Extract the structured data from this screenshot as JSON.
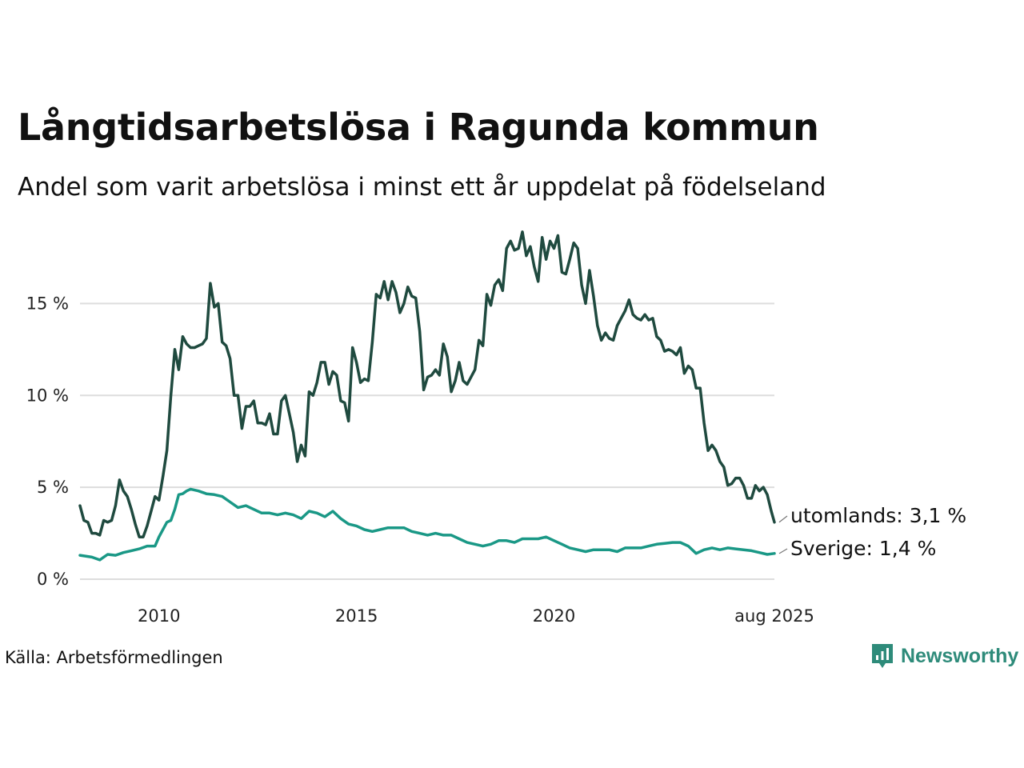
{
  "header": {
    "title": "Långtidsarbetslösa i Ragunda kommun",
    "subtitle": "Andel som varit arbetslösa i minst ett år uppdelat på födelseland"
  },
  "footer": {
    "source": "Källa: Arbetsförmedlingen",
    "brand": "Newsworthy"
  },
  "colors": {
    "utomlands": "#1f4a3f",
    "sverige": "#1a9886",
    "grid": "#dddddd",
    "brand": "#2e8b7a"
  },
  "chart_data": {
    "type": "line",
    "x_unit": "year",
    "xlim": [
      2008.0,
      2025.58
    ],
    "ylim": [
      0,
      19.5
    ],
    "grid": "horizontal",
    "y_ticks": [
      {
        "value": 0,
        "label": "0 %"
      },
      {
        "value": 5,
        "label": "5 %"
      },
      {
        "value": 10,
        "label": "10 %"
      },
      {
        "value": 15,
        "label": "15 %"
      }
    ],
    "x_ticks": [
      {
        "value": 2010,
        "label": "2010"
      },
      {
        "value": 2015,
        "label": "2015"
      },
      {
        "value": 2020,
        "label": "2020"
      },
      {
        "value": 2025.58,
        "label": "aug 2025"
      }
    ],
    "series": [
      {
        "name": "utomlands",
        "end_label": "utomlands: 3,1 %",
        "color_key": "utomlands",
        "points": [
          [
            2008.0,
            4.0
          ],
          [
            2008.1,
            3.2
          ],
          [
            2008.2,
            3.1
          ],
          [
            2008.3,
            2.5
          ],
          [
            2008.4,
            2.5
          ],
          [
            2008.5,
            2.4
          ],
          [
            2008.6,
            3.2
          ],
          [
            2008.7,
            3.1
          ],
          [
            2008.8,
            3.2
          ],
          [
            2008.9,
            4.0
          ],
          [
            2009.0,
            5.4
          ],
          [
            2009.1,
            4.8
          ],
          [
            2009.2,
            4.5
          ],
          [
            2009.3,
            3.8
          ],
          [
            2009.4,
            3.0
          ],
          [
            2009.5,
            2.3
          ],
          [
            2009.6,
            2.3
          ],
          [
            2009.7,
            2.9
          ],
          [
            2009.8,
            3.7
          ],
          [
            2009.9,
            4.5
          ],
          [
            2010.0,
            4.3
          ],
          [
            2010.1,
            5.6
          ],
          [
            2010.2,
            7.0
          ],
          [
            2010.3,
            10.0
          ],
          [
            2010.4,
            12.5
          ],
          [
            2010.5,
            11.4
          ],
          [
            2010.6,
            13.2
          ],
          [
            2010.7,
            12.8
          ],
          [
            2010.8,
            12.6
          ],
          [
            2010.9,
            12.6
          ],
          [
            2011.0,
            12.7
          ],
          [
            2011.1,
            12.8
          ],
          [
            2011.2,
            13.1
          ],
          [
            2011.3,
            16.1
          ],
          [
            2011.4,
            14.8
          ],
          [
            2011.5,
            15.0
          ],
          [
            2011.6,
            12.9
          ],
          [
            2011.7,
            12.7
          ],
          [
            2011.8,
            12.0
          ],
          [
            2011.9,
            10.0
          ],
          [
            2012.0,
            10.0
          ],
          [
            2012.1,
            8.2
          ],
          [
            2012.2,
            9.4
          ],
          [
            2012.3,
            9.4
          ],
          [
            2012.4,
            9.7
          ],
          [
            2012.5,
            8.5
          ],
          [
            2012.6,
            8.5
          ],
          [
            2012.7,
            8.4
          ],
          [
            2012.8,
            9.0
          ],
          [
            2012.9,
            7.9
          ],
          [
            2013.0,
            7.9
          ],
          [
            2013.1,
            9.7
          ],
          [
            2013.2,
            10.0
          ],
          [
            2013.3,
            9.0
          ],
          [
            2013.4,
            8.0
          ],
          [
            2013.5,
            6.4
          ],
          [
            2013.6,
            7.3
          ],
          [
            2013.7,
            6.7
          ],
          [
            2013.8,
            10.2
          ],
          [
            2013.9,
            10.0
          ],
          [
            2014.0,
            10.7
          ],
          [
            2014.1,
            11.8
          ],
          [
            2014.2,
            11.8
          ],
          [
            2014.3,
            10.6
          ],
          [
            2014.4,
            11.3
          ],
          [
            2014.5,
            11.1
          ],
          [
            2014.6,
            9.7
          ],
          [
            2014.7,
            9.6
          ],
          [
            2014.8,
            8.6
          ],
          [
            2014.9,
            12.6
          ],
          [
            2015.0,
            11.8
          ],
          [
            2015.1,
            10.7
          ],
          [
            2015.2,
            10.9
          ],
          [
            2015.3,
            10.8
          ],
          [
            2015.4,
            12.9
          ],
          [
            2015.5,
            15.5
          ],
          [
            2015.6,
            15.3
          ],
          [
            2015.7,
            16.2
          ],
          [
            2015.8,
            15.2
          ],
          [
            2015.9,
            16.2
          ],
          [
            2016.0,
            15.6
          ],
          [
            2016.1,
            14.5
          ],
          [
            2016.2,
            15.0
          ],
          [
            2016.3,
            15.9
          ],
          [
            2016.4,
            15.4
          ],
          [
            2016.5,
            15.3
          ],
          [
            2016.6,
            13.5
          ],
          [
            2016.7,
            10.3
          ],
          [
            2016.8,
            11.0
          ],
          [
            2016.9,
            11.1
          ],
          [
            2017.0,
            11.4
          ],
          [
            2017.1,
            11.1
          ],
          [
            2017.2,
            12.8
          ],
          [
            2017.3,
            12.1
          ],
          [
            2017.4,
            10.2
          ],
          [
            2017.5,
            10.8
          ],
          [
            2017.6,
            11.8
          ],
          [
            2017.7,
            10.8
          ],
          [
            2017.8,
            10.6
          ],
          [
            2017.9,
            11.0
          ],
          [
            2018.0,
            11.4
          ],
          [
            2018.1,
            13.0
          ],
          [
            2018.2,
            12.7
          ],
          [
            2018.3,
            15.5
          ],
          [
            2018.4,
            14.9
          ],
          [
            2018.5,
            16.0
          ],
          [
            2018.6,
            16.3
          ],
          [
            2018.7,
            15.7
          ],
          [
            2018.8,
            18.0
          ],
          [
            2018.9,
            18.4
          ],
          [
            2019.0,
            17.9
          ],
          [
            2019.1,
            18.0
          ],
          [
            2019.2,
            18.9
          ],
          [
            2019.3,
            17.6
          ],
          [
            2019.4,
            18.1
          ],
          [
            2019.5,
            17.0
          ],
          [
            2019.6,
            16.2
          ],
          [
            2019.7,
            18.6
          ],
          [
            2019.8,
            17.4
          ],
          [
            2019.9,
            18.4
          ],
          [
            2020.0,
            18.0
          ],
          [
            2020.1,
            18.7
          ],
          [
            2020.2,
            16.7
          ],
          [
            2020.3,
            16.6
          ],
          [
            2020.4,
            17.4
          ],
          [
            2020.5,
            18.3
          ],
          [
            2020.6,
            18.0
          ],
          [
            2020.7,
            16.0
          ],
          [
            2020.8,
            15.0
          ],
          [
            2020.9,
            16.8
          ],
          [
            2021.0,
            15.4
          ],
          [
            2021.1,
            13.8
          ],
          [
            2021.2,
            13.0
          ],
          [
            2021.3,
            13.4
          ],
          [
            2021.4,
            13.1
          ],
          [
            2021.5,
            13.0
          ],
          [
            2021.6,
            13.8
          ],
          [
            2021.7,
            14.2
          ],
          [
            2021.8,
            14.6
          ],
          [
            2021.9,
            15.2
          ],
          [
            2022.0,
            14.4
          ],
          [
            2022.1,
            14.2
          ],
          [
            2022.2,
            14.1
          ],
          [
            2022.3,
            14.4
          ],
          [
            2022.4,
            14.1
          ],
          [
            2022.5,
            14.2
          ],
          [
            2022.6,
            13.2
          ],
          [
            2022.7,
            13.0
          ],
          [
            2022.8,
            12.4
          ],
          [
            2022.9,
            12.5
          ],
          [
            2023.0,
            12.4
          ],
          [
            2023.1,
            12.2
          ],
          [
            2023.2,
            12.6
          ],
          [
            2023.3,
            11.2
          ],
          [
            2023.4,
            11.6
          ],
          [
            2023.5,
            11.4
          ],
          [
            2023.6,
            10.4
          ],
          [
            2023.7,
            10.4
          ],
          [
            2023.8,
            8.5
          ],
          [
            2023.9,
            7.0
          ],
          [
            2024.0,
            7.3
          ],
          [
            2024.1,
            7.0
          ],
          [
            2024.2,
            6.4
          ],
          [
            2024.3,
            6.1
          ],
          [
            2024.4,
            5.1
          ],
          [
            2024.5,
            5.2
          ],
          [
            2024.6,
            5.5
          ],
          [
            2024.7,
            5.5
          ],
          [
            2024.8,
            5.1
          ],
          [
            2024.9,
            4.4
          ],
          [
            2025.0,
            4.4
          ],
          [
            2025.1,
            5.1
          ],
          [
            2025.2,
            4.8
          ],
          [
            2025.3,
            5.0
          ],
          [
            2025.4,
            4.6
          ],
          [
            2025.5,
            3.7
          ],
          [
            2025.58,
            3.1
          ]
        ]
      },
      {
        "name": "Sverige",
        "end_label": "Sverige: 1,4 %",
        "color_key": "sverige",
        "points": [
          [
            2008.0,
            1.3
          ],
          [
            2008.3,
            1.2
          ],
          [
            2008.5,
            1.05
          ],
          [
            2008.7,
            1.35
          ],
          [
            2008.9,
            1.3
          ],
          [
            2009.1,
            1.45
          ],
          [
            2009.3,
            1.55
          ],
          [
            2009.5,
            1.65
          ],
          [
            2009.7,
            1.8
          ],
          [
            2009.9,
            1.8
          ],
          [
            2010.0,
            2.3
          ],
          [
            2010.2,
            3.1
          ],
          [
            2010.3,
            3.2
          ],
          [
            2010.4,
            3.8
          ],
          [
            2010.5,
            4.6
          ],
          [
            2010.6,
            4.65
          ],
          [
            2010.7,
            4.8
          ],
          [
            2010.8,
            4.9
          ],
          [
            2011.0,
            4.8
          ],
          [
            2011.2,
            4.65
          ],
          [
            2011.4,
            4.6
          ],
          [
            2011.6,
            4.5
          ],
          [
            2011.8,
            4.2
          ],
          [
            2012.0,
            3.9
          ],
          [
            2012.2,
            4.0
          ],
          [
            2012.4,
            3.8
          ],
          [
            2012.6,
            3.6
          ],
          [
            2012.8,
            3.6
          ],
          [
            2013.0,
            3.5
          ],
          [
            2013.2,
            3.6
          ],
          [
            2013.4,
            3.5
          ],
          [
            2013.6,
            3.3
          ],
          [
            2013.8,
            3.7
          ],
          [
            2014.0,
            3.6
          ],
          [
            2014.2,
            3.4
          ],
          [
            2014.4,
            3.7
          ],
          [
            2014.6,
            3.3
          ],
          [
            2014.8,
            3.0
          ],
          [
            2015.0,
            2.9
          ],
          [
            2015.2,
            2.7
          ],
          [
            2015.4,
            2.6
          ],
          [
            2015.6,
            2.7
          ],
          [
            2015.8,
            2.8
          ],
          [
            2016.0,
            2.8
          ],
          [
            2016.2,
            2.8
          ],
          [
            2016.4,
            2.6
          ],
          [
            2016.6,
            2.5
          ],
          [
            2016.8,
            2.4
          ],
          [
            2017.0,
            2.5
          ],
          [
            2017.2,
            2.4
          ],
          [
            2017.4,
            2.4
          ],
          [
            2017.6,
            2.2
          ],
          [
            2017.8,
            2.0
          ],
          [
            2018.0,
            1.9
          ],
          [
            2018.2,
            1.8
          ],
          [
            2018.4,
            1.9
          ],
          [
            2018.6,
            2.1
          ],
          [
            2018.8,
            2.1
          ],
          [
            2019.0,
            2.0
          ],
          [
            2019.2,
            2.2
          ],
          [
            2019.4,
            2.2
          ],
          [
            2019.6,
            2.2
          ],
          [
            2019.8,
            2.3
          ],
          [
            2020.0,
            2.1
          ],
          [
            2020.2,
            1.9
          ],
          [
            2020.4,
            1.7
          ],
          [
            2020.6,
            1.6
          ],
          [
            2020.8,
            1.5
          ],
          [
            2021.0,
            1.6
          ],
          [
            2021.2,
            1.6
          ],
          [
            2021.4,
            1.6
          ],
          [
            2021.6,
            1.5
          ],
          [
            2021.8,
            1.7
          ],
          [
            2022.0,
            1.7
          ],
          [
            2022.2,
            1.7
          ],
          [
            2022.4,
            1.8
          ],
          [
            2022.6,
            1.9
          ],
          [
            2022.8,
            1.95
          ],
          [
            2023.0,
            2.0
          ],
          [
            2023.2,
            2.0
          ],
          [
            2023.4,
            1.8
          ],
          [
            2023.6,
            1.4
          ],
          [
            2023.8,
            1.6
          ],
          [
            2024.0,
            1.7
          ],
          [
            2024.2,
            1.6
          ],
          [
            2024.4,
            1.7
          ],
          [
            2024.6,
            1.65
          ],
          [
            2024.8,
            1.6
          ],
          [
            2025.0,
            1.55
          ],
          [
            2025.2,
            1.45
          ],
          [
            2025.4,
            1.35
          ],
          [
            2025.58,
            1.4
          ]
        ]
      }
    ]
  }
}
